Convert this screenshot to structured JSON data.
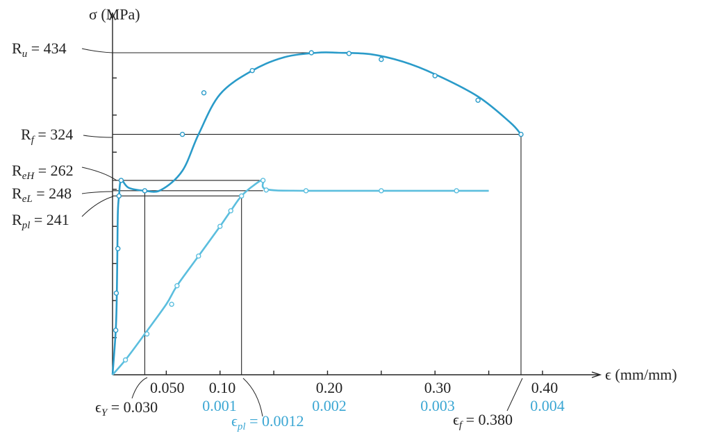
{
  "chart_data": {
    "type": "line",
    "ylabel": "σ (MPa)",
    "xlabel": "ϵ (mm/mm)",
    "x_ticks_primary": [
      "0.050",
      "0.10",
      "0.20",
      "0.30",
      "0.40"
    ],
    "x_ticks_secondary": [
      "0.001",
      "0.002",
      "0.003",
      "0.004"
    ],
    "annotations": {
      "Ru": {
        "sub": "u",
        "value": "434",
        "stress": 434
      },
      "Rf": {
        "sub": "f",
        "value": "324",
        "stress": 324
      },
      "ReH": {
        "sub": "eH",
        "value": "262",
        "stress": 262
      },
      "ReL": {
        "sub": "eL",
        "value": "248",
        "stress": 248
      },
      "Rpl": {
        "sub": "pl",
        "value": "241",
        "stress": 241
      },
      "eps_Y": {
        "sub": "Y",
        "value": "0.030"
      },
      "eps_pl": {
        "sub": "pl",
        "value": "0.0012"
      },
      "eps_f": {
        "sub": "f",
        "value": "0.380"
      }
    },
    "series": [
      {
        "x_scale": "primary",
        "color": "#2a9bc9",
        "points": [
          [
            0,
            0
          ],
          [
            0.003,
            60
          ],
          [
            0.004,
            110
          ],
          [
            0.0045,
            170
          ],
          [
            0.005,
            220
          ],
          [
            0.006,
            241
          ],
          [
            0.008,
            262
          ],
          [
            0.015,
            252
          ],
          [
            0.03,
            248
          ],
          [
            0.045,
            249
          ],
          [
            0.065,
            275
          ],
          [
            0.08,
            324
          ],
          [
            0.1,
            378
          ],
          [
            0.13,
            410
          ],
          [
            0.16,
            428
          ],
          [
            0.19,
            434
          ],
          [
            0.21,
            434
          ],
          [
            0.24,
            432
          ],
          [
            0.27,
            422
          ],
          [
            0.3,
            405
          ],
          [
            0.34,
            375
          ],
          [
            0.37,
            340
          ],
          [
            0.38,
            324
          ]
        ],
        "markers": [
          [
            0.003,
            60
          ],
          [
            0.0035,
            110
          ],
          [
            0.005,
            170
          ],
          [
            0.006,
            241
          ],
          [
            0.008,
            262
          ],
          [
            0.03,
            248
          ],
          [
            0.065,
            324
          ],
          [
            0.085,
            380
          ],
          [
            0.13,
            410
          ],
          [
            0.185,
            434
          ],
          [
            0.22,
            433
          ],
          [
            0.25,
            425
          ],
          [
            0.3,
            403
          ],
          [
            0.34,
            370
          ],
          [
            0.38,
            324
          ]
        ]
      },
      {
        "x_scale": "secondary",
        "color": "#5bbede",
        "points": [
          [
            0,
            0
          ],
          [
            0.00012,
            20
          ],
          [
            0.0003,
            55
          ],
          [
            0.0005,
            95
          ],
          [
            0.0006,
            120
          ],
          [
            0.0008,
            160
          ],
          [
            0.001,
            200
          ],
          [
            0.0011,
            221
          ],
          [
            0.0012,
            241
          ],
          [
            0.00132,
            256
          ],
          [
            0.0014,
            262
          ],
          [
            0.00143,
            250
          ],
          [
            0.0018,
            248
          ],
          [
            0.0025,
            248
          ],
          [
            0.0032,
            248
          ],
          [
            0.0035,
            248
          ]
        ],
        "markers": [
          [
            0.00012,
            20
          ],
          [
            0.00032,
            55
          ],
          [
            0.00055,
            95
          ],
          [
            0.0006,
            120
          ],
          [
            0.0008,
            160
          ],
          [
            0.001,
            200
          ],
          [
            0.0011,
            221
          ],
          [
            0.0012,
            241
          ],
          [
            0.0014,
            262
          ],
          [
            0.00143,
            249
          ],
          [
            0.0018,
            248
          ],
          [
            0.0025,
            248
          ],
          [
            0.0032,
            248
          ]
        ]
      }
    ]
  }
}
